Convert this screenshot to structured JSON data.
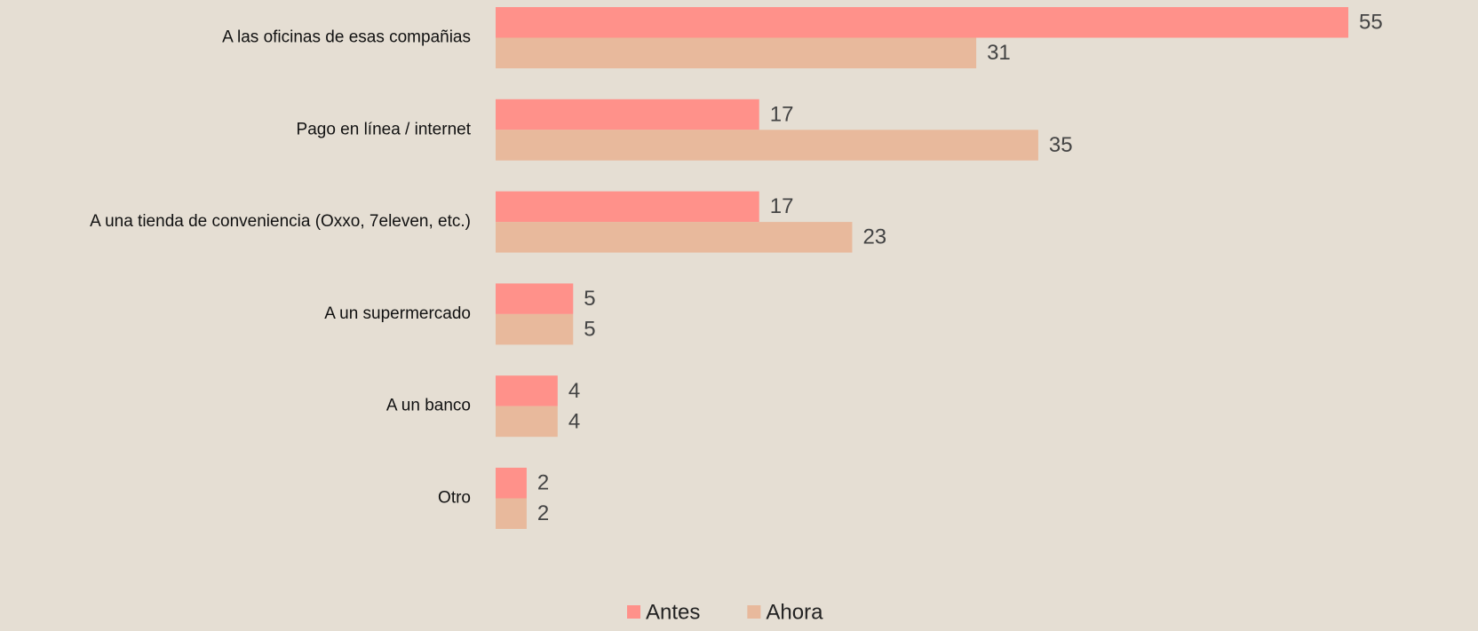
{
  "chart_data": {
    "type": "bar",
    "orientation": "horizontal",
    "categories": [
      "A las oficinas de esas compañias",
      "Pago en línea / internet",
      "A una tienda de conveniencia (Oxxo, 7eleven, etc.)",
      "A un supermercado",
      "A un banco",
      "Otro"
    ],
    "series": [
      {
        "name": "Antes",
        "color": "#ff918a",
        "values": [
          55,
          17,
          17,
          5,
          4,
          2
        ]
      },
      {
        "name": "Ahora",
        "color": "#e8b99c",
        "values": [
          31,
          35,
          23,
          5,
          4,
          2
        ]
      }
    ],
    "legend": "bottom"
  }
}
